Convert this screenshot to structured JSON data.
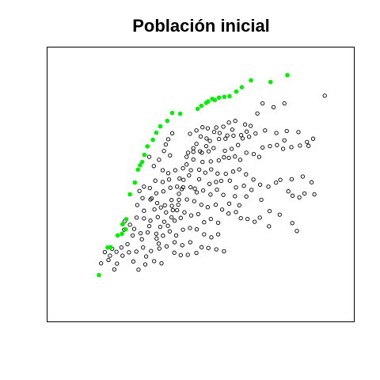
{
  "chart_data": {
    "type": "scatter",
    "title": "Población inicial",
    "xlabel": "",
    "ylabel": "",
    "xlim": [
      0,
      100
    ],
    "ylim": [
      0,
      100
    ],
    "axes_visible": false,
    "grid": false,
    "series": [
      {
        "marker": "open-circle",
        "color": "#000000",
        "points": [
          [
            90.5,
            82.4
          ],
          [
            77.3,
            79.6
          ],
          [
            73.8,
            78.2
          ],
          [
            70.2,
            79.6
          ],
          [
            68.5,
            75.9
          ],
          [
            66.3,
            71.4
          ],
          [
            64.5,
            71.9
          ],
          [
            61.3,
            73.2
          ],
          [
            59.2,
            72.6
          ],
          [
            57.4,
            71.1
          ],
          [
            55.1,
            70.8
          ],
          [
            52.3,
            70.5
          ],
          [
            50.6,
            70.9
          ],
          [
            48.6,
            69.7
          ],
          [
            46.5,
            68.5
          ],
          [
            58.1,
            66.7
          ],
          [
            56.0,
            66.6
          ],
          [
            53.0,
            65.9
          ],
          [
            48.6,
            64.8
          ],
          [
            47.6,
            63.2
          ],
          [
            49.8,
            62.1
          ],
          [
            51.8,
            64.0
          ],
          [
            54.2,
            63.3
          ],
          [
            52.6,
            62.1
          ],
          [
            50.4,
            61.6
          ],
          [
            47.6,
            61.9
          ],
          [
            45.9,
            61.6
          ],
          [
            45.4,
            60.1
          ],
          [
            47.6,
            59.1
          ],
          [
            50.6,
            58.2
          ],
          [
            53.3,
            58.4
          ],
          [
            55.9,
            58.8
          ],
          [
            57.6,
            59.9
          ],
          [
            59.2,
            59.7
          ],
          [
            61.2,
            60.2
          ],
          [
            62.9,
            59.0
          ],
          [
            64.9,
            61.6
          ],
          [
            67.3,
            61.1
          ],
          [
            69.1,
            60.1
          ],
          [
            70.2,
            63.5
          ],
          [
            72.6,
            64.0
          ],
          [
            74.9,
            64.4
          ],
          [
            76.9,
            63.0
          ],
          [
            77.3,
            66.1
          ],
          [
            79.6,
            63.6
          ],
          [
            82.4,
            64.2
          ],
          [
            84.7,
            65.5
          ],
          [
            85.2,
            64.1
          ],
          [
            86.7,
            66.7
          ],
          [
            81.9,
            69.1
          ],
          [
            78.1,
            69.5
          ],
          [
            74.7,
            68.8
          ],
          [
            71.0,
            69.7
          ],
          [
            67.9,
            68.6
          ],
          [
            65.8,
            67.4
          ],
          [
            63.2,
            68.0
          ],
          [
            60.7,
            67.8
          ],
          [
            58.7,
            67.9
          ],
          [
            56.2,
            68.8
          ],
          [
            54.4,
            69.2
          ],
          [
            40.7,
            68.7
          ],
          [
            39.4,
            66.5
          ],
          [
            38.6,
            64.6
          ],
          [
            38.0,
            62.2
          ],
          [
            40.0,
            60.6
          ],
          [
            36.4,
            59.0
          ],
          [
            33.2,
            60.1
          ],
          [
            34.7,
            56.7
          ],
          [
            37.6,
            55.2
          ],
          [
            39.4,
            54.1
          ],
          [
            41.7,
            55.2
          ],
          [
            44.2,
            55.9
          ],
          [
            46.8,
            55.2
          ],
          [
            49.5,
            55.4
          ],
          [
            51.5,
            54.3
          ],
          [
            53.4,
            55.5
          ],
          [
            55.5,
            54.0
          ],
          [
            58.2,
            53.9
          ],
          [
            60.6,
            54.7
          ],
          [
            62.6,
            55.5
          ],
          [
            64.8,
            53.7
          ],
          [
            67.2,
            51.8
          ],
          [
            69.4,
            49.9
          ],
          [
            72.1,
            49.2
          ],
          [
            74.6,
            50.7
          ],
          [
            76.0,
            51.7
          ],
          [
            78.6,
            47.5
          ],
          [
            80.0,
            45.9
          ],
          [
            82.2,
            45.3
          ],
          [
            83.9,
            46.7
          ],
          [
            87.1,
            46.4
          ],
          [
            86.2,
            50.8
          ],
          [
            83.3,
            52.9
          ],
          [
            79.7,
            51.9
          ],
          [
            69.8,
            44.4
          ],
          [
            64.9,
            45.6
          ],
          [
            62.6,
            42.4
          ],
          [
            61.2,
            45.7
          ],
          [
            59.3,
            43.0
          ],
          [
            57.4,
            46.2
          ],
          [
            55.3,
            48.1
          ],
          [
            53.2,
            46.3
          ],
          [
            50.8,
            47.8
          ],
          [
            48.7,
            47.1
          ],
          [
            46.7,
            49.0
          ],
          [
            44.3,
            49.0
          ],
          [
            42.3,
            49.2
          ],
          [
            40.1,
            48.8
          ],
          [
            37.8,
            47.5
          ],
          [
            35.5,
            46.8
          ],
          [
            33.4,
            48.7
          ],
          [
            31.5,
            49.2
          ],
          [
            30.0,
            47.6
          ],
          [
            31.0,
            45.0
          ],
          [
            33.6,
            44.5
          ],
          [
            35.8,
            43.2
          ],
          [
            38.3,
            42.4
          ],
          [
            40.5,
            44.3
          ],
          [
            42.9,
            44.4
          ],
          [
            45.5,
            44.5
          ],
          [
            47.9,
            43.9
          ],
          [
            50.2,
            42.6
          ],
          [
            52.3,
            41.7
          ],
          [
            54.9,
            42.6
          ],
          [
            57.0,
            40.8
          ],
          [
            59.1,
            39.4
          ],
          [
            61.5,
            39.9
          ],
          [
            63.1,
            37.7
          ],
          [
            65.3,
            37.4
          ],
          [
            67.6,
            36.4
          ],
          [
            69.3,
            37.9
          ],
          [
            72.3,
            34.7
          ],
          [
            79.9,
            35.9
          ],
          [
            81.4,
            33.0
          ],
          [
            75.8,
            39.0
          ],
          [
            72.5,
            40.3
          ],
          [
            55.7,
            36.0
          ],
          [
            53.3,
            37.4
          ],
          [
            51.1,
            36.2
          ],
          [
            49.2,
            39.2
          ],
          [
            46.9,
            38.7
          ],
          [
            44.7,
            39.8
          ],
          [
            42.3,
            40.6
          ],
          [
            40.5,
            38.0
          ],
          [
            38.1,
            36.4
          ],
          [
            36.0,
            38.1
          ],
          [
            33.6,
            36.8
          ],
          [
            31.5,
            37.6
          ],
          [
            29.1,
            37.9
          ],
          [
            26.9,
            35.3
          ],
          [
            25.2,
            36.6
          ],
          [
            25.0,
            33.5
          ],
          [
            27.8,
            31.4
          ],
          [
            30.4,
            32.2
          ],
          [
            32.7,
            32.5
          ],
          [
            35.5,
            32.0
          ],
          [
            37.7,
            31.3
          ],
          [
            39.9,
            32.9
          ],
          [
            42.0,
            31.4
          ],
          [
            44.2,
            33.5
          ],
          [
            46.5,
            34.1
          ],
          [
            48.7,
            33.6
          ],
          [
            51.1,
            31.8
          ],
          [
            53.5,
            30.7
          ],
          [
            55.7,
            31.8
          ],
          [
            46.6,
            28.9
          ],
          [
            44.0,
            27.8
          ],
          [
            41.5,
            28.9
          ],
          [
            38.9,
            27.4
          ],
          [
            36.5,
            26.6
          ],
          [
            33.8,
            25.7
          ],
          [
            31.2,
            27.0
          ],
          [
            29.0,
            25.5
          ],
          [
            26.6,
            25.2
          ],
          [
            24.5,
            24.0
          ],
          [
            22.5,
            25.4
          ],
          [
            20.4,
            24.0
          ],
          [
            18.7,
            25.3
          ],
          [
            19.9,
            22.4
          ],
          [
            22.7,
            21.1
          ],
          [
            21.8,
            19.0
          ],
          [
            17.5,
            21.2
          ],
          [
            34.8,
            22.0
          ],
          [
            37.2,
            21.2
          ],
          [
            31.9,
            20.8
          ],
          [
            29.7,
            18.9
          ],
          [
            28.0,
            21.9
          ],
          [
            32.2,
            23.7
          ],
          [
            41.4,
            25.1
          ],
          [
            43.5,
            24.2
          ],
          [
            45.8,
            24.3
          ],
          [
            48.6,
            25.0
          ],
          [
            50.3,
            27.1
          ],
          [
            52.5,
            26.8
          ],
          [
            55.1,
            26.3
          ],
          [
            57.6,
            25.6
          ],
          [
            35.6,
            30.3
          ],
          [
            36.8,
            34.5
          ],
          [
            38.7,
            39.8
          ],
          [
            40.6,
            42.2
          ],
          [
            42.9,
            46.6
          ],
          [
            44.4,
            51.7
          ],
          [
            46.2,
            53.3
          ],
          [
            45.4,
            57.3
          ],
          [
            43.1,
            52.2
          ],
          [
            39.7,
            51.8
          ],
          [
            37.6,
            50.9
          ],
          [
            35.2,
            51.4
          ],
          [
            34.0,
            44.9
          ],
          [
            31.5,
            40.4
          ],
          [
            29.3,
            42.5
          ],
          [
            28.3,
            33.8
          ],
          [
            39.3,
            34.9
          ],
          [
            41.5,
            36.8
          ],
          [
            43.5,
            37.8
          ],
          [
            49.5,
            51.9
          ],
          [
            48.1,
            48.5
          ],
          [
            52.9,
            50.2
          ],
          [
            55.0,
            50.9
          ],
          [
            56.7,
            51.3
          ],
          [
            59.5,
            51.4
          ],
          [
            61.5,
            48.9
          ],
          [
            64.1,
            49.5
          ],
          [
            66.6,
            48.0
          ],
          [
            57.9,
            62.3
          ],
          [
            60.1,
            63.0
          ],
          [
            62.2,
            64.4
          ],
          [
            63.7,
            66.8
          ],
          [
            65.0,
            69.3
          ],
          [
            60.3,
            70.0
          ],
          [
            50.0,
            67.5
          ],
          [
            51.9,
            66.8
          ],
          [
            43.8,
            48.3
          ],
          [
            42.7,
            42.6
          ],
          [
            40.9,
            40.6
          ],
          [
            37.0,
            41.6
          ],
          [
            34.9,
            40.9
          ],
          [
            33.2,
            34.8
          ],
          [
            30.8,
            30.0
          ],
          [
            36.3,
            28.4
          ],
          [
            26.1,
            28.2
          ],
          [
            24.1,
            27.0
          ],
          [
            21.1,
            26.5
          ]
        ]
      },
      {
        "marker": "filled-circle",
        "color": "#00ee00",
        "points": [
          [
            16.8,
            16.9
          ],
          [
            19.6,
            27.0
          ],
          [
            20.6,
            27.1
          ],
          [
            22.9,
            31.4
          ],
          [
            24.3,
            32.0
          ],
          [
            25.5,
            33.6
          ],
          [
            24.5,
            35.5
          ],
          [
            25.7,
            37.3
          ],
          [
            26.9,
            46.4
          ],
          [
            28.5,
            50.7
          ],
          [
            29.5,
            55.4
          ],
          [
            30.2,
            57.0
          ],
          [
            30.9,
            58.2
          ],
          [
            31.6,
            60.8
          ],
          [
            32.6,
            63.9
          ],
          [
            34.4,
            66.3
          ],
          [
            35.5,
            68.9
          ],
          [
            36.8,
            71.2
          ],
          [
            39.1,
            73.2
          ],
          [
            40.7,
            76.1
          ],
          [
            43.3,
            75.8
          ],
          [
            49.0,
            77.6
          ],
          [
            50.2,
            78.7
          ],
          [
            51.8,
            79.8
          ],
          [
            52.4,
            80.3
          ],
          [
            53.8,
            81.2
          ],
          [
            54.6,
            80.8
          ],
          [
            56.0,
            81.7
          ],
          [
            57.7,
            82.0
          ],
          [
            59.4,
            82.2
          ],
          [
            61.6,
            83.9
          ],
          [
            63.4,
            85.5
          ],
          [
            66.4,
            88.0
          ],
          [
            72.8,
            87.4
          ],
          [
            78.3,
            89.9
          ]
        ]
      }
    ]
  },
  "colors": {
    "background": "#ffffff",
    "frame": "#000000",
    "open_marker": "#000000",
    "highlight_marker": "#00ee00"
  }
}
